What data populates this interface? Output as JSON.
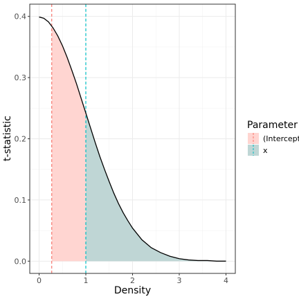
{
  "chart_data": {
    "type": "area",
    "title": "",
    "xlabel": "Density",
    "ylabel": "t-statistic",
    "xlim": [
      -0.2,
      4.2
    ],
    "ylim": [
      -0.02,
      0.42
    ],
    "x_ticks": [
      "0",
      "1",
      "2",
      "3",
      "4"
    ],
    "y_ticks": [
      "0.0",
      "0.1",
      "0.2",
      "0.3",
      "0.4"
    ],
    "grid": true,
    "curve": {
      "x": [
        0.0,
        0.1,
        0.2,
        0.3,
        0.4,
        0.5,
        0.6,
        0.7,
        0.8,
        0.9,
        1.0,
        1.1,
        1.2,
        1.3,
        1.4,
        1.5,
        1.6,
        1.7,
        1.8,
        1.9,
        2.0,
        2.2,
        2.4,
        2.6,
        2.8,
        3.0,
        3.2,
        3.4,
        3.6,
        3.8,
        4.0
      ],
      "y": [
        0.399,
        0.397,
        0.391,
        0.381,
        0.368,
        0.352,
        0.333,
        0.312,
        0.29,
        0.266,
        0.242,
        0.218,
        0.194,
        0.171,
        0.15,
        0.13,
        0.111,
        0.094,
        0.079,
        0.066,
        0.054,
        0.035,
        0.022,
        0.014,
        0.008,
        0.004,
        0.002,
        0.001,
        0.001,
        0.0,
        0.0
      ]
    },
    "series": [
      {
        "name": "(Intercept)",
        "color": "#F8766D",
        "fill": "#FFD5D1",
        "vline": 0.27,
        "region": [
          0.27,
          1.0
        ]
      },
      {
        "name": "x",
        "color": "#00BFC4",
        "fill": "#BFD6D5",
        "vline": 1.0,
        "region": [
          1.0,
          4.0
        ]
      }
    ],
    "legend": {
      "title": "Parameter",
      "placement": "right"
    }
  }
}
